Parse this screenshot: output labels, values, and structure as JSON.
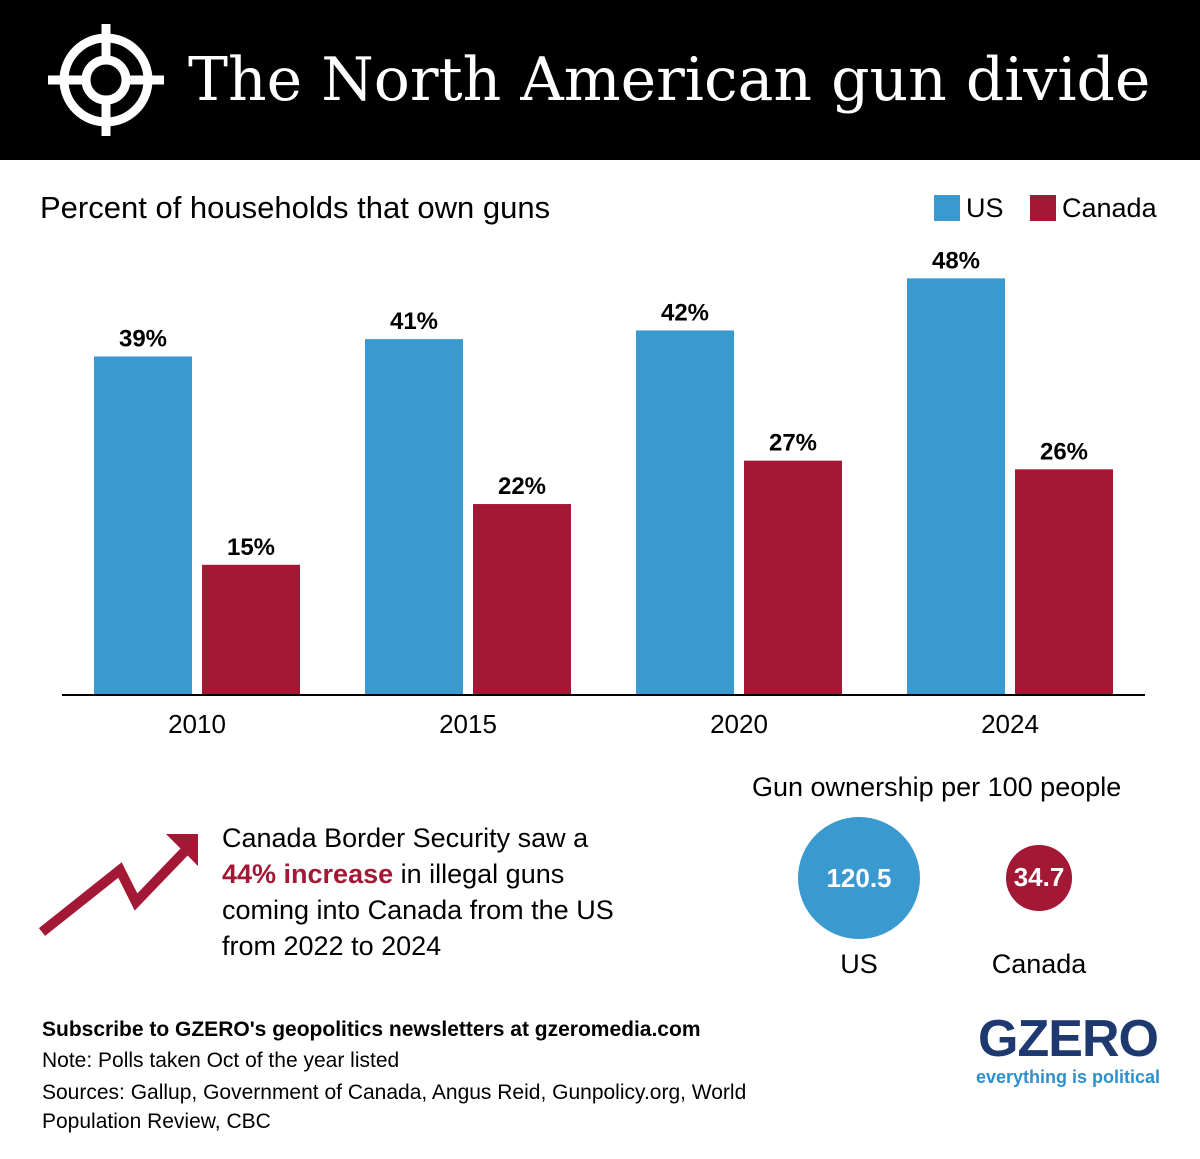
{
  "header": {
    "title": "The North American gun divide",
    "icon": "crosshair-icon"
  },
  "colors": {
    "us": "#3a9ad0",
    "canada": "#a31834",
    "header_bg": "#000000",
    "logo_navy": "#1e3970",
    "logo_blue": "#2f8fcb"
  },
  "chart_data": {
    "type": "bar",
    "title": "Percent of households that own guns",
    "categories": [
      "2010",
      "2015",
      "2020",
      "2024"
    ],
    "series": [
      {
        "name": "US",
        "values": [
          39,
          41,
          42,
          48
        ],
        "labels": [
          "39%",
          "41%",
          "42%",
          "48%"
        ]
      },
      {
        "name": "Canada",
        "values": [
          15,
          22,
          27,
          26
        ],
        "labels": [
          "15%",
          "22%",
          "27%",
          "26%"
        ]
      }
    ],
    "ylim": [
      0,
      50
    ],
    "legend_position": "top-right",
    "grid": false
  },
  "per100": {
    "title": "Gun ownership per 100 people",
    "items": [
      {
        "name": "US",
        "value": 120.5,
        "label": "120.5"
      },
      {
        "name": "Canada",
        "value": 34.7,
        "label": "34.7"
      }
    ]
  },
  "callout": {
    "icon": "trend-up-arrow-icon",
    "before": "Canada Border Security saw a ",
    "highlight": "44% increase",
    "after": " in illegal guns coming into Canada from the US from 2022 to 2024"
  },
  "footer": {
    "subscribe": "Subscribe to GZERO's geopolitics newsletters at gzeromedia.com",
    "note": "Note: Polls taken Oct of the year listed",
    "sources": "Sources: Gallup, Government of Canada, Angus Reid, Gunpolicy.org, World Population Review, CBC"
  },
  "logo": {
    "word": "GZERO",
    "tagline": "everything is political"
  }
}
